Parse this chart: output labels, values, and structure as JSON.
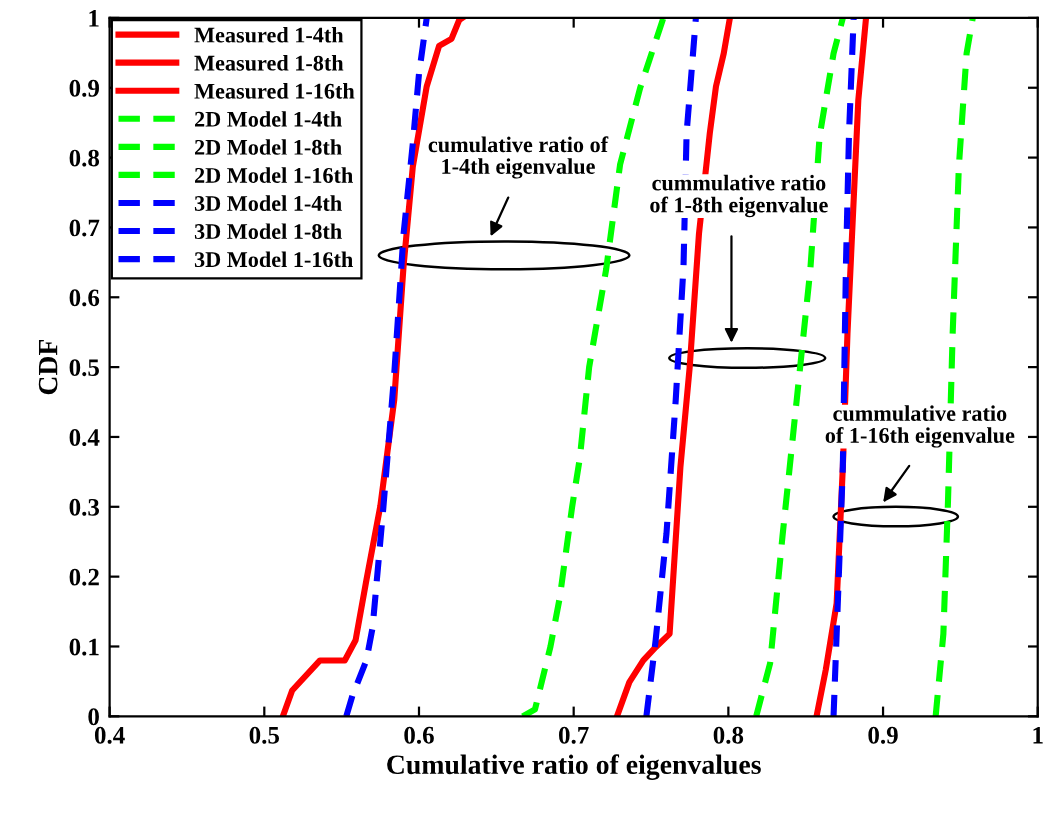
{
  "chart_data": {
    "type": "line",
    "xlabel": "Cumulative ratio of eigenvalues",
    "ylabel": "CDF",
    "xlim": [
      0.4,
      1
    ],
    "ylim": [
      0,
      1
    ],
    "xticks": [
      0.4,
      0.5,
      0.6,
      0.7,
      0.8,
      0.9,
      1
    ],
    "yticks": [
      0,
      0.1,
      0.2,
      0.3,
      0.4,
      0.5,
      0.6,
      0.7,
      0.8,
      0.9,
      1
    ],
    "grid": false,
    "legend": "top left",
    "series": [
      {
        "name": "Measured 1-4th",
        "color": "#ff0000",
        "line_style": "solid",
        "x": [
          0.512,
          0.518,
          0.536,
          0.552,
          0.559,
          0.566,
          0.575,
          0.584,
          0.59,
          0.596,
          0.605,
          0.613,
          0.621,
          0.626,
          0.628
        ],
        "values": [
          0,
          0.037,
          0.08,
          0.08,
          0.109,
          0.195,
          0.301,
          0.453,
          0.644,
          0.787,
          0.902,
          0.96,
          0.97,
          0.997,
          1
        ]
      },
      {
        "name": "Measured 1-8th",
        "color": "#ff0000",
        "line_style": "solid",
        "x": [
          0.728,
          0.736,
          0.745,
          0.753,
          0.762,
          0.769,
          0.775,
          0.781,
          0.788,
          0.792,
          0.797,
          0.801
        ],
        "values": [
          0,
          0.049,
          0.08,
          0.099,
          0.118,
          0.357,
          0.5,
          0.691,
          0.835,
          0.902,
          0.949,
          1
        ]
      },
      {
        "name": "Measured 1-16th",
        "color": "#ff0000",
        "line_style": "solid",
        "x": [
          0.857,
          0.863,
          0.87,
          0.874,
          0.877,
          0.881,
          0.884,
          0.889
        ],
        "values": [
          0,
          0.067,
          0.162,
          0.357,
          0.548,
          0.739,
          0.882,
          1
        ]
      },
      {
        "name": "2D Model 1-4th",
        "color": "#00ff00",
        "line_style": "dashed",
        "x": [
          0.667,
          0.675,
          0.685,
          0.691,
          0.699,
          0.704,
          0.71,
          0.721,
          0.73,
          0.743,
          0.758
        ],
        "values": [
          0,
          0.01,
          0.1,
          0.17,
          0.3,
          0.37,
          0.5,
          0.64,
          0.79,
          0.9,
          1
        ]
      },
      {
        "name": "2D Model 1-8th",
        "color": "#00ff00",
        "line_style": "dashed",
        "x": [
          0.818,
          0.827,
          0.835,
          0.844,
          0.853,
          0.859,
          0.868,
          0.874
        ],
        "values": [
          0,
          0.076,
          0.258,
          0.449,
          0.64,
          0.831,
          0.949,
          1
        ]
      },
      {
        "name": "2D Model 1-16th",
        "color": "#00ff00",
        "line_style": "dashed",
        "x": [
          0.934,
          0.939,
          0.942,
          0.945,
          0.949,
          0.954,
          0.958
        ],
        "values": [
          0,
          0.118,
          0.309,
          0.548,
          0.787,
          0.949,
          1
        ]
      },
      {
        "name": "3D Model 1-4th",
        "color": "#0000ff",
        "line_style": "dashed",
        "x": [
          0.553,
          0.557,
          0.566,
          0.57,
          0.577,
          0.584,
          0.59,
          0.596,
          0.6,
          0.605
        ],
        "values": [
          0,
          0.03,
          0.08,
          0.127,
          0.3,
          0.49,
          0.69,
          0.82,
          0.92,
          1
        ]
      },
      {
        "name": "3D Model 1-8th",
        "color": "#0000ff",
        "line_style": "dashed",
        "x": [
          0.747,
          0.753,
          0.76,
          0.766,
          0.771,
          0.773,
          0.779
        ],
        "values": [
          0,
          0.109,
          0.262,
          0.454,
          0.644,
          0.835,
          1
        ]
      },
      {
        "name": "3D Model 1-16th",
        "color": "#0000ff",
        "line_style": "dashed",
        "x": [
          0.868,
          0.87,
          0.874,
          0.876,
          0.878,
          0.881
        ],
        "values": [
          0,
          0.118,
          0.357,
          0.644,
          0.835,
          1
        ]
      }
    ],
    "annotations": [
      "cumulative ratio of\n1-4th eigenvalue",
      "cummulative ratio\nof 1-8th eigenvalue",
      "cummulative ratio\nof 1-16th eigenvalue"
    ]
  }
}
